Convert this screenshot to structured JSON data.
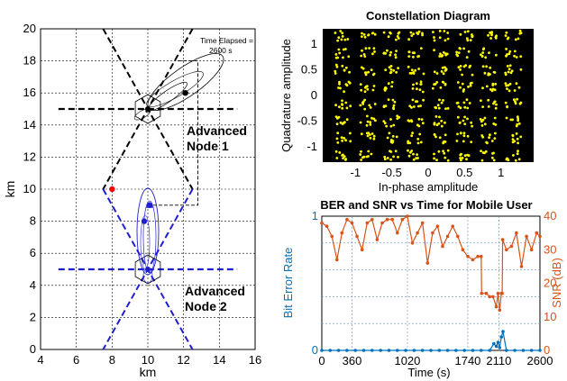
{
  "chart_data": [
    {
      "type": "scatter",
      "xlabel": "km",
      "ylabel": "km",
      "xlim": [
        4,
        16
      ],
      "ylim": [
        0,
        20
      ],
      "xticks": [
        "4",
        "6",
        "8",
        "10",
        "12",
        "14",
        "16"
      ],
      "yticks": [
        "0",
        "2",
        "4",
        "6",
        "8",
        "10",
        "12",
        "14",
        "16",
        "18",
        "20"
      ],
      "grid": true,
      "annotations": {
        "time_elapsed": "Time Elapsed =",
        "time_value": "2600 s",
        "node1_line1": "Advanced",
        "node1_line2": "Node 1",
        "node2_line1": "Advanced",
        "node2_line2": "Node 2"
      },
      "nodes": [
        {
          "name": "Advanced Node 1",
          "x": 10,
          "y": 15,
          "color": "#000000"
        },
        {
          "name": "Advanced Node 2",
          "x": 10,
          "y": 5,
          "color": "#1f1fd0"
        }
      ],
      "points": [
        {
          "x": 8.0,
          "y": 10.0,
          "color": "#ff0000"
        },
        {
          "x": 12.1,
          "y": 16.0,
          "color": "#000000"
        },
        {
          "x": 10.1,
          "y": 9.0,
          "color": "#1f1fd0"
        },
        {
          "x": 9.8,
          "y": 8.0,
          "color": "#1f1fd0"
        }
      ]
    },
    {
      "type": "scatter",
      "title": "Constellation Diagram",
      "xlabel": "In-phase amplitude",
      "ylabel": "Quadrature amplitude",
      "xlim": [
        -1.45,
        1.45
      ],
      "ylim": [
        -1.3,
        1.3
      ],
      "xticks": [
        "-1",
        "-0.5",
        "0",
        "0.5",
        "1"
      ],
      "yticks": [
        "-1",
        "-0.5",
        "0",
        "0.5",
        "1"
      ],
      "grid": false,
      "background": "#000000",
      "point_color": "#ffff00",
      "constellation": "8x8 QAM",
      "levels": [
        -1.17,
        -0.83,
        -0.5,
        -0.17,
        0.17,
        0.5,
        0.83,
        1.17
      ]
    },
    {
      "type": "line",
      "title": "BER and SNR vs Time for Mobile User",
      "xlabel": "Time (s)",
      "ylabel": "Bit Error Rate",
      "ylabel_right": "SNR (dB)",
      "xlim": [
        0,
        2600
      ],
      "ylim": [
        0,
        1
      ],
      "ylim_right": [
        0,
        40
      ],
      "xticks": [
        "0",
        "360",
        "1020",
        "1740",
        "2110",
        "2600"
      ],
      "yticks": [
        "0",
        "0.2",
        "0.4",
        "0.6",
        "0.8",
        "1"
      ],
      "yticks_right": [
        "0",
        "10",
        "20",
        "30",
        "40"
      ],
      "grid": true,
      "series": [
        {
          "axis": "left",
          "color": "#0072bd",
          "x": [
            0,
            100,
            200,
            300,
            400,
            500,
            600,
            700,
            800,
            900,
            1000,
            1100,
            1200,
            1300,
            1400,
            1500,
            1600,
            1700,
            1800,
            1900,
            2000,
            2050,
            2080,
            2100,
            2120,
            2140,
            2160,
            2200,
            2300,
            2400,
            2500,
            2600
          ],
          "values": [
            0,
            0,
            0,
            0,
            0,
            0,
            0,
            0,
            0,
            0,
            0,
            0,
            0,
            0,
            0,
            0,
            0,
            0,
            0,
            0,
            0,
            0.05,
            0.03,
            0.06,
            0.02,
            0.1,
            0.14,
            0,
            0,
            0,
            0,
            0
          ]
        },
        {
          "axis": "right",
          "color": "#d95319",
          "x": [
            0,
            60,
            120,
            180,
            240,
            300,
            360,
            420,
            480,
            540,
            600,
            660,
            720,
            780,
            840,
            900,
            960,
            1020,
            1080,
            1140,
            1200,
            1260,
            1320,
            1380,
            1440,
            1500,
            1560,
            1620,
            1680,
            1740,
            1800,
            1860,
            1900,
            1905,
            1960,
            2000,
            2040,
            2080,
            2100,
            2120,
            2140,
            2150,
            2155,
            2200,
            2260,
            2320,
            2380,
            2440,
            2500,
            2560,
            2600
          ],
          "values": [
            38,
            37,
            34,
            27,
            35,
            39,
            38,
            34,
            30,
            38,
            39,
            33,
            38,
            39,
            39,
            35,
            39,
            40,
            32,
            35,
            38,
            26,
            35,
            37,
            31,
            34,
            37,
            34,
            30,
            28,
            27,
            28,
            28,
            17,
            17,
            16,
            16,
            13,
            17,
            12,
            17,
            17,
            33,
            30,
            31,
            35,
            25,
            34,
            30,
            35,
            34
          ]
        }
      ]
    }
  ]
}
